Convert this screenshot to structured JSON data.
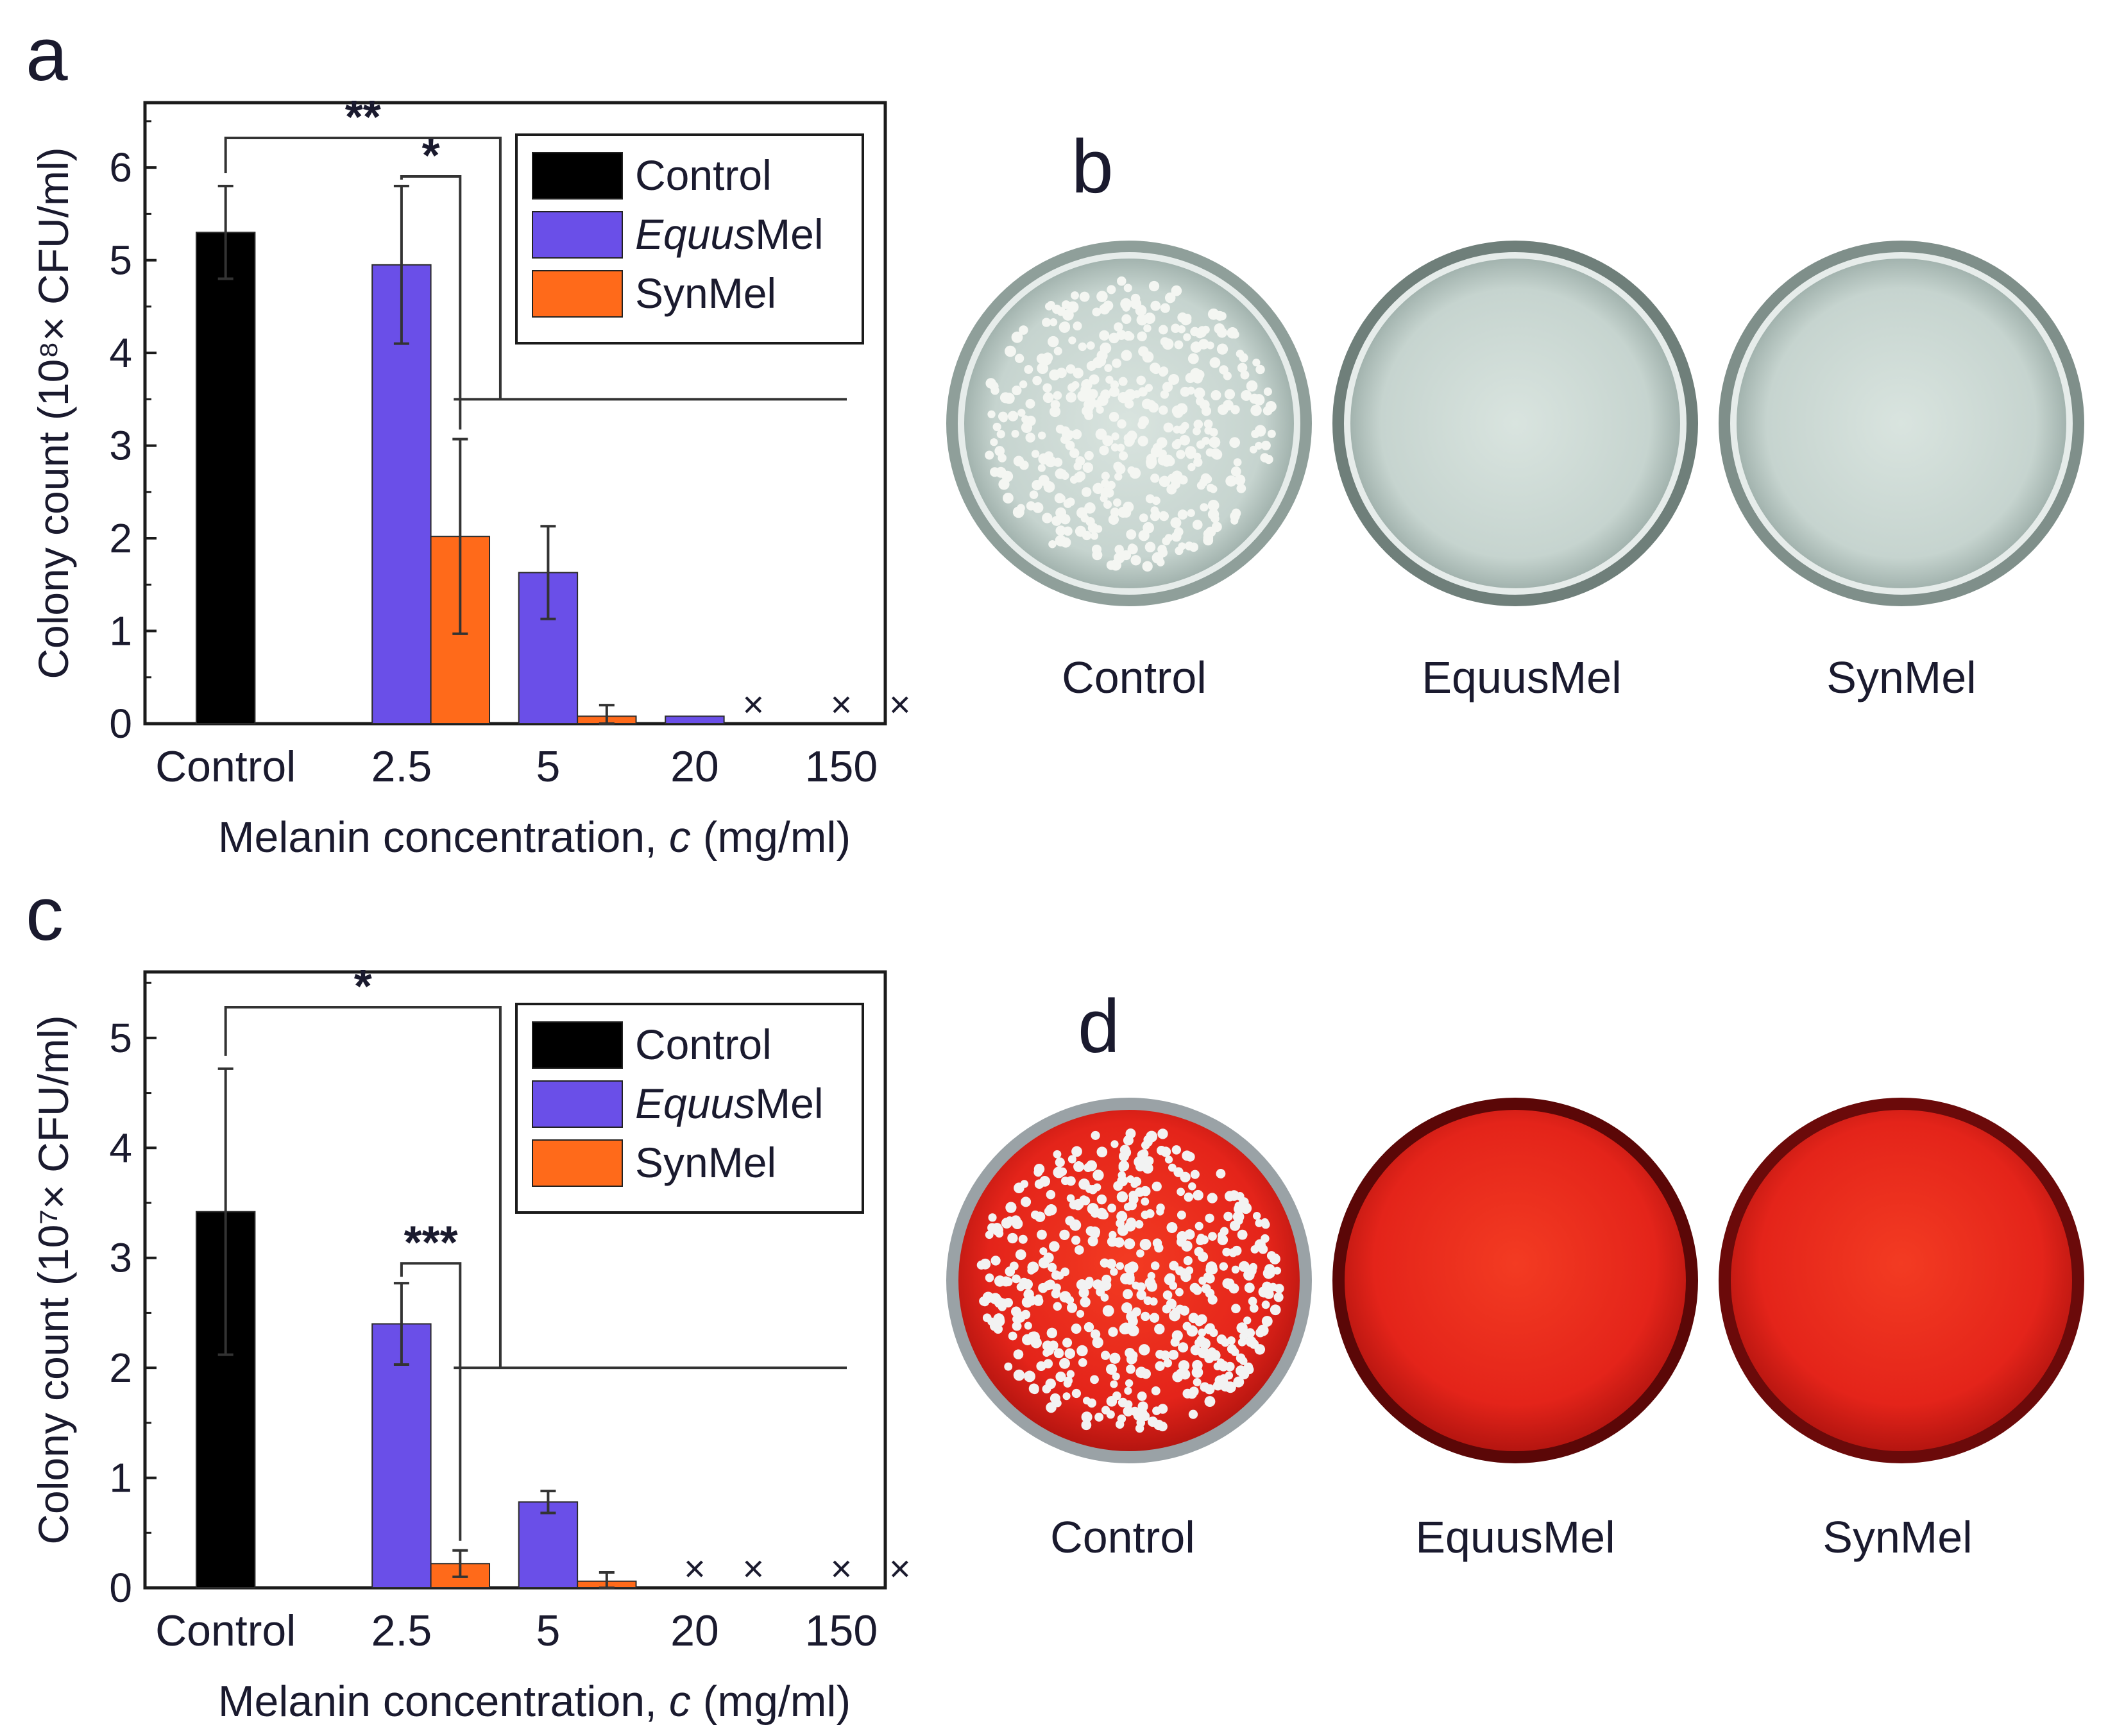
{
  "panels": {
    "a": {
      "label": "a"
    },
    "b": {
      "label": "b",
      "plates": [
        "Control",
        "EquusMel",
        "SynMel"
      ]
    },
    "c": {
      "label": "c"
    },
    "d": {
      "label": "d",
      "plates": [
        "Control",
        "EquusMel",
        "SynMel"
      ]
    }
  },
  "chart_data": [
    {
      "panel": "a",
      "type": "bar",
      "categories": [
        "Control",
        "2.5",
        "5",
        "20",
        "150"
      ],
      "series": [
        {
          "name": "Control",
          "color": "#000000",
          "values": [
            5.3,
            null,
            null,
            null,
            null
          ],
          "errors": [
            0.5,
            null,
            null,
            null,
            null
          ]
        },
        {
          "name": "EquusMel",
          "color": "#6a4fe8",
          "values": [
            null,
            4.95,
            1.63,
            0.08,
            0
          ],
          "errors": [
            null,
            0.85,
            0.5,
            0,
            0
          ]
        },
        {
          "name": "SynMel",
          "color": "#ff6a1a",
          "values": [
            null,
            2.02,
            0.08,
            0,
            0
          ],
          "errors": [
            null,
            1.05,
            0.12,
            0,
            0
          ]
        }
      ],
      "no_growth_markers": [
        {
          "category": "20",
          "series": [
            "SynMel"
          ],
          "symbol": "×"
        },
        {
          "category": "150",
          "series": [
            "EquusMel",
            "SynMel"
          ],
          "symbol": "×"
        }
      ],
      "significance": [
        {
          "label": "**",
          "from": "Control",
          "to": "2.5 SynMel"
        },
        {
          "label": "*",
          "from": "2.5 EquusMel",
          "to": "2.5 SynMel"
        }
      ],
      "xlabel": "Melanin concentration, c (mg/ml)",
      "ylabel": "Colony count (10⁸× CFU/ml)",
      "ylim": [
        0,
        6.7
      ],
      "yticks": [
        0,
        1,
        2,
        3,
        4,
        5,
        6
      ],
      "legend": [
        "Control",
        "EquusMel",
        "SynMel"
      ],
      "legend_position": "top-right"
    },
    {
      "panel": "c",
      "type": "bar",
      "categories": [
        "Control",
        "2.5",
        "5",
        "20",
        "150"
      ],
      "series": [
        {
          "name": "Control",
          "color": "#000000",
          "values": [
            3.42,
            null,
            null,
            null,
            null
          ],
          "errors": [
            1.3,
            null,
            null,
            null,
            null
          ]
        },
        {
          "name": "EquusMel",
          "color": "#6a4fe8",
          "values": [
            null,
            2.4,
            0.78,
            0,
            0
          ],
          "errors": [
            null,
            0.37,
            0.1,
            0,
            0
          ]
        },
        {
          "name": "SynMel",
          "color": "#ff6a1a",
          "values": [
            null,
            0.22,
            0.06,
            0,
            0
          ],
          "errors": [
            null,
            0.12,
            0.08,
            0,
            0
          ]
        }
      ],
      "no_growth_markers": [
        {
          "category": "20",
          "series": [
            "EquusMel",
            "SynMel"
          ],
          "symbol": "×"
        },
        {
          "category": "150",
          "series": [
            "EquusMel",
            "SynMel"
          ],
          "symbol": "×"
        }
      ],
      "significance": [
        {
          "label": "*",
          "from": "Control",
          "to": "2.5 SynMel"
        },
        {
          "label": "***",
          "from": "2.5 EquusMel",
          "to": "2.5 SynMel"
        }
      ],
      "xlabel": "Melanin concentration, c (mg/ml)",
      "ylabel": "Colony count (10⁷× CFU/ml)",
      "ylim": [
        0,
        5.6
      ],
      "yticks": [
        0,
        1,
        2,
        3,
        4,
        5
      ],
      "legend": [
        "Control",
        "EquusMel",
        "SynMel"
      ],
      "legend_position": "top-right"
    }
  ]
}
